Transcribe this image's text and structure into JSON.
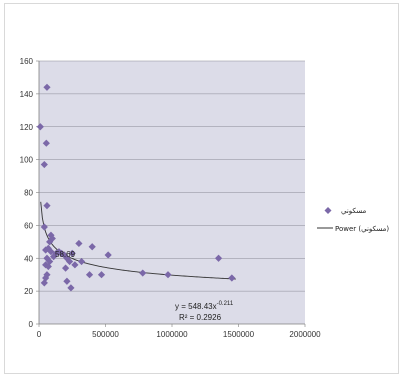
{
  "chart_data": {
    "type": "scatter",
    "title": "",
    "xlabel": "",
    "ylabel": "",
    "xlim": [
      0,
      2000000
    ],
    "ylim": [
      0,
      160
    ],
    "x_ticks": [
      0,
      500000,
      1000000,
      1500000,
      2000000
    ],
    "x_tick_labels": [
      "0",
      "500000",
      "1000000",
      "1500000",
      "2000000"
    ],
    "y_ticks": [
      0,
      20,
      40,
      60,
      80,
      100,
      120,
      140,
      160
    ],
    "y_tick_labels": [
      "0",
      "20",
      "40",
      "60",
      "80",
      "100",
      "120",
      "140",
      "160"
    ],
    "grid": "horizontal",
    "plot_background": "#dcdce8",
    "legend_position": "right",
    "series": [
      {
        "name": "مسكوني",
        "marker": "diamond",
        "color": "#7b68a8",
        "points": [
          [
            10000,
            120
          ],
          [
            60000,
            144
          ],
          [
            55000,
            110
          ],
          [
            40000,
            97
          ],
          [
            60000,
            72
          ],
          [
            40000,
            59
          ],
          [
            90000,
            54
          ],
          [
            80000,
            50
          ],
          [
            100000,
            52
          ],
          [
            50000,
            45
          ],
          [
            70000,
            46
          ],
          [
            90000,
            44
          ],
          [
            60000,
            40
          ],
          [
            80000,
            38
          ],
          [
            50000,
            36
          ],
          [
            70000,
            35
          ],
          [
            110000,
            41
          ],
          [
            130000,
            43
          ],
          [
            150000,
            44
          ],
          [
            170000,
            43
          ],
          [
            190000,
            42
          ],
          [
            210000,
            40
          ],
          [
            230000,
            38
          ],
          [
            250000,
            43
          ],
          [
            270000,
            36
          ],
          [
            60000,
            30
          ],
          [
            50000,
            28
          ],
          [
            40000,
            25
          ],
          [
            200000,
            34
          ],
          [
            210000,
            26
          ],
          [
            240000,
            22
          ],
          [
            300000,
            49
          ],
          [
            320000,
            38
          ],
          [
            380000,
            30
          ],
          [
            400000,
            47
          ],
          [
            470000,
            30
          ],
          [
            520000,
            42
          ],
          [
            780000,
            31
          ],
          [
            970000,
            30
          ],
          [
            1350000,
            40
          ],
          [
            1450000,
            28
          ]
        ]
      }
    ],
    "trendline": {
      "name": "Power (مسكوني)",
      "type": "power",
      "a": 548.43,
      "b": -0.211,
      "x_range": [
        13000,
        1480000
      ],
      "color": "#333333"
    },
    "annotations": {
      "point_label": "58.69",
      "equation": "y = 548.43x",
      "equation_exponent": "-0.211",
      "r_squared": "R² = 0.2926"
    }
  }
}
